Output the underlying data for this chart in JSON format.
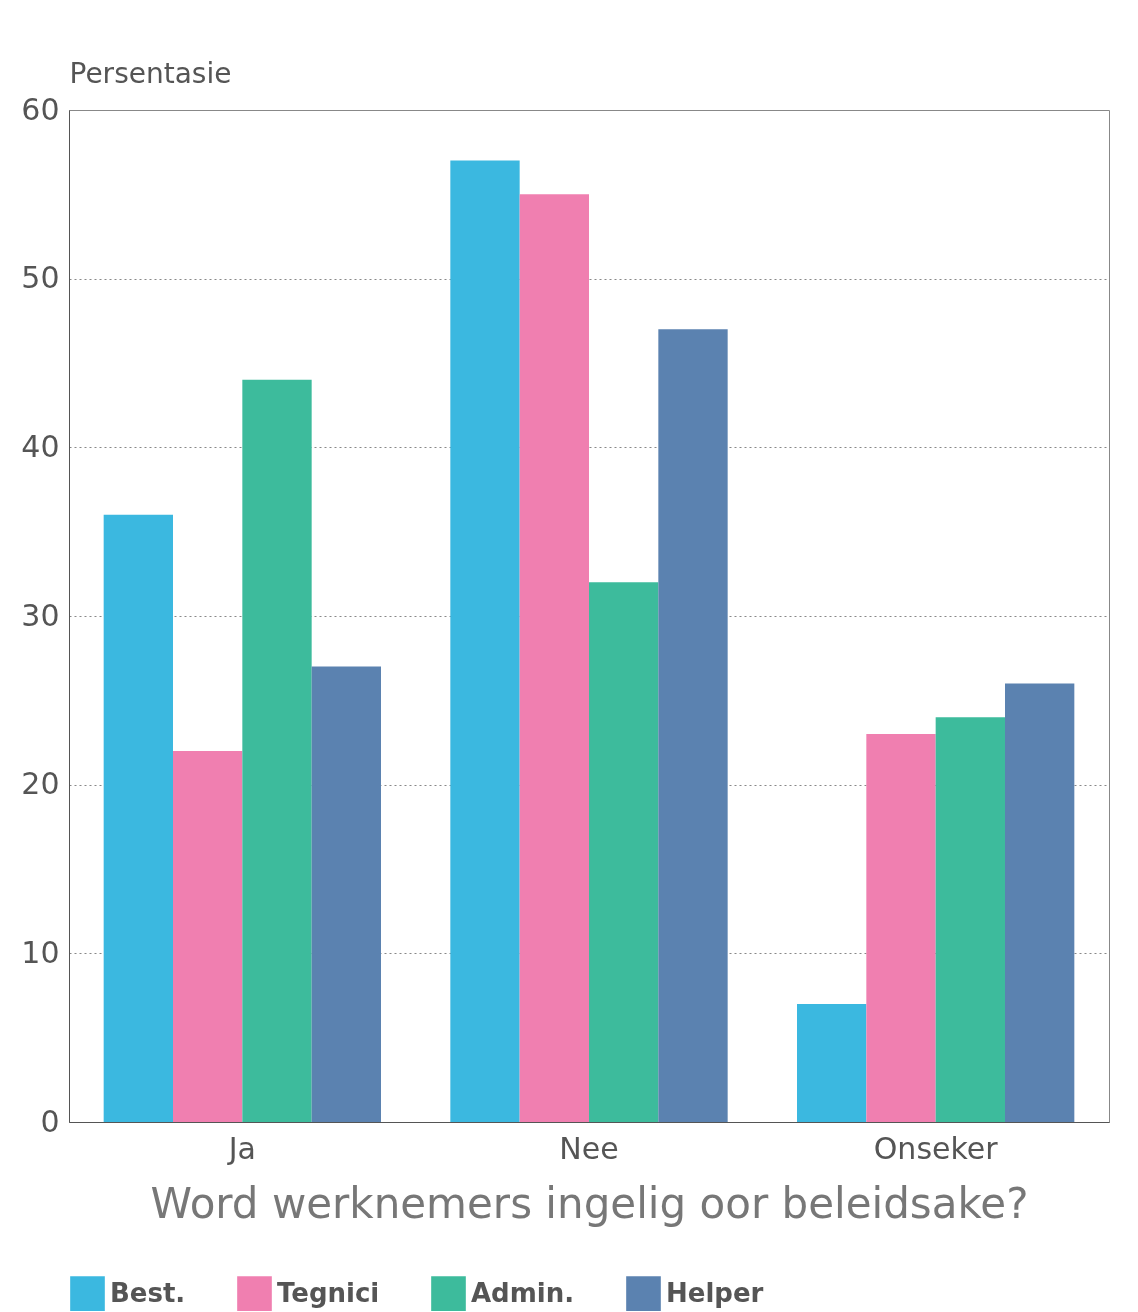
{
  "chart_data": {
    "type": "bar",
    "ylabel": "Persentasie",
    "xlabel": "Word werknemers ingelig oor beleidsake?",
    "categories": [
      "Ja",
      "Nee",
      "Onseker"
    ],
    "series": [
      {
        "name": "Best.",
        "color": "#3bb8e0",
        "values": [
          36,
          57,
          7
        ]
      },
      {
        "name": "Tegnici",
        "color": "#f07fb0",
        "values": [
          22,
          55,
          23
        ]
      },
      {
        "name": "Admin.",
        "color": "#3dbb9c",
        "values": [
          44,
          32,
          24
        ]
      },
      {
        "name": "Helper",
        "color": "#5b82b0",
        "values": [
          27,
          47,
          26
        ]
      }
    ],
    "ylim": [
      0,
      60
    ],
    "yticks": [
      0,
      10,
      20,
      30,
      40,
      50,
      60
    ],
    "grid": "y",
    "legend": "bottom"
  }
}
